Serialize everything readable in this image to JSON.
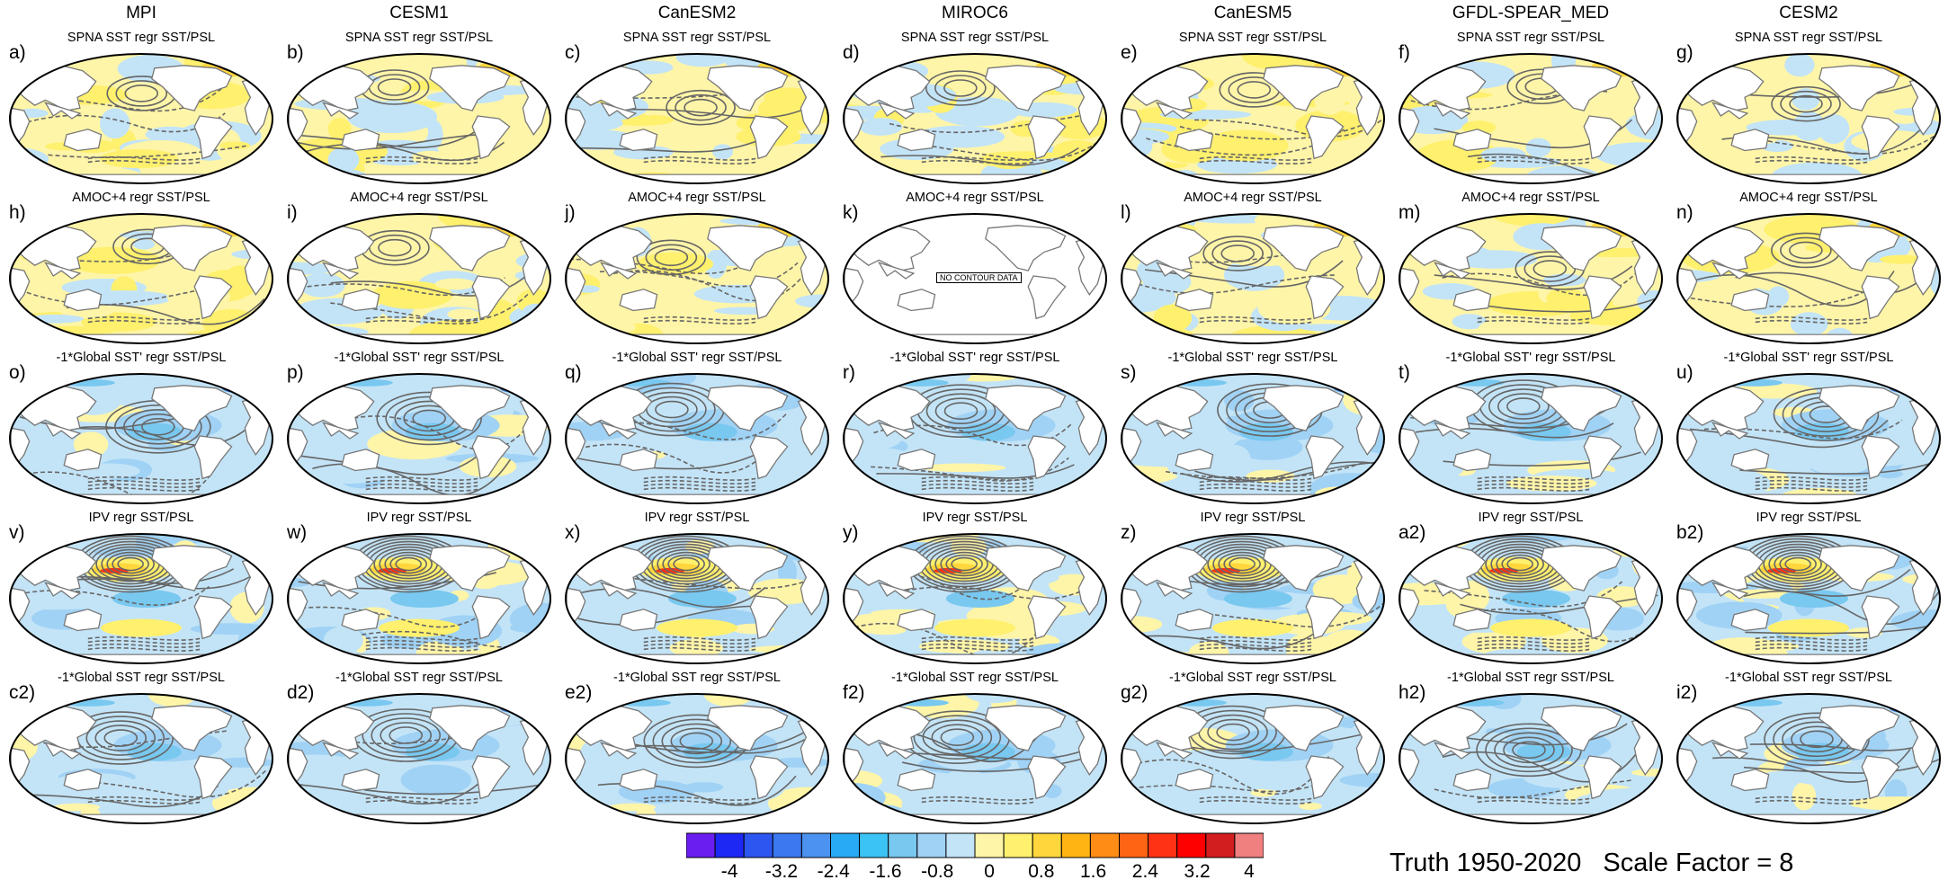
{
  "columns": [
    "MPI",
    "CESM1",
    "CanESM2",
    "MIROC6",
    "CanESM5",
    "GFDL-SPEAR_MED",
    "CESM2"
  ],
  "rows": [
    {
      "title": "SPNA SST regr SST/PSL",
      "labels": [
        "a)",
        "b)",
        "c)",
        "d)",
        "e)",
        "f)",
        "g)"
      ],
      "pattern": "spna"
    },
    {
      "title": "AMOC+4 regr SST/PSL",
      "labels": [
        "h)",
        "i)",
        "j)",
        "k)",
        "l)",
        "m)",
        "n)"
      ],
      "pattern": "amoc"
    },
    {
      "title": "-1*Global SST' regr SST/PSL",
      "labels": [
        "o)",
        "p)",
        "q)",
        "r)",
        "s)",
        "t)",
        "u)"
      ],
      "pattern": "gsst"
    },
    {
      "title": "IPV regr SST/PSL",
      "labels": [
        "v)",
        "w)",
        "x)",
        "y)",
        "z)",
        "a2)",
        "b2)"
      ],
      "pattern": "ipv"
    },
    {
      "title": "-1*Global SST regr SST/PSL",
      "labels": [
        "c2)",
        "d2)",
        "e2)",
        "f2)",
        "g2)",
        "h2)",
        "i2)"
      ],
      "pattern": "gsst2"
    }
  ],
  "no_data_panel": {
    "row": 1,
    "col": 3,
    "text": "NO CONTOUR DATA"
  },
  "colorbar": {
    "ticks": [
      "-4",
      "-3.2",
      "-2.4",
      "-1.6",
      "-0.8",
      "0",
      "0.8",
      "1.6",
      "2.4",
      "3.2",
      "4"
    ],
    "colors": [
      "#6a1ef0",
      "#1e28f5",
      "#2d55f0",
      "#3c78f0",
      "#4c92f0",
      "#28aaf5",
      "#3cc3f5",
      "#78c8f0",
      "#a0d2f5",
      "#c3e4f7",
      "#fff5a8",
      "#fff06e",
      "#ffd73c",
      "#ffb414",
      "#ff8c14",
      "#ff6414",
      "#ff3214",
      "#ff0000",
      "#d21e1e",
      "#f08080"
    ]
  },
  "footer": {
    "truth": "Truth 1950-2020",
    "scale": "Scale Factor = 8"
  }
}
